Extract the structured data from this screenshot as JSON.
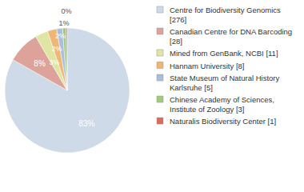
{
  "chart_data": {
    "type": "pie",
    "categories": [
      "Centre for Biodiversity Genomics [276]",
      "Canadian Centre for DNA Barcoding [28]",
      "Mined from GenBank, NCBI [11]",
      "Hannam University [8]",
      "State Museum of Natural History Karlsruhe [5]",
      "Chinese Academy of Sciences, Institute of Zoology [3]",
      "Naturalis Biodiversity Center [1]"
    ],
    "values": [
      83.1,
      8.4,
      3.3,
      2.4,
      1.5,
      0.9,
      0.3
    ],
    "value_labels": [
      "83%",
      "8%",
      "3%",
      "2%",
      "2%",
      "1%",
      "0%"
    ],
    "colors": [
      "#cfdae8",
      "#dda39b",
      "#dfe6a3",
      "#efb676",
      "#a9bedd",
      "#9fcb7b",
      "#df6a5c"
    ],
    "data_labels": true,
    "legend": "right"
  }
}
